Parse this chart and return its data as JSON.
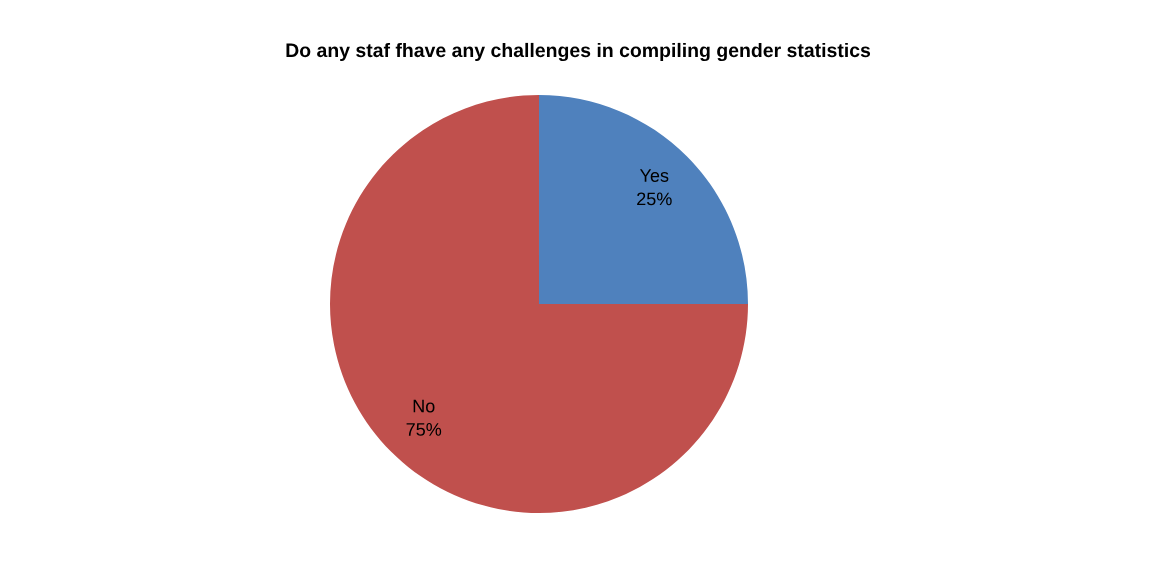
{
  "chart_data": {
    "type": "pie",
    "title": "Do any staf fhave any challenges in compiling gender statistics",
    "categories": [
      "Yes",
      "No"
    ],
    "values": [
      25,
      75
    ],
    "colors": [
      "#4f81bd",
      "#c0504d"
    ],
    "value_labels": [
      "25%",
      "75%"
    ],
    "legend": false
  }
}
